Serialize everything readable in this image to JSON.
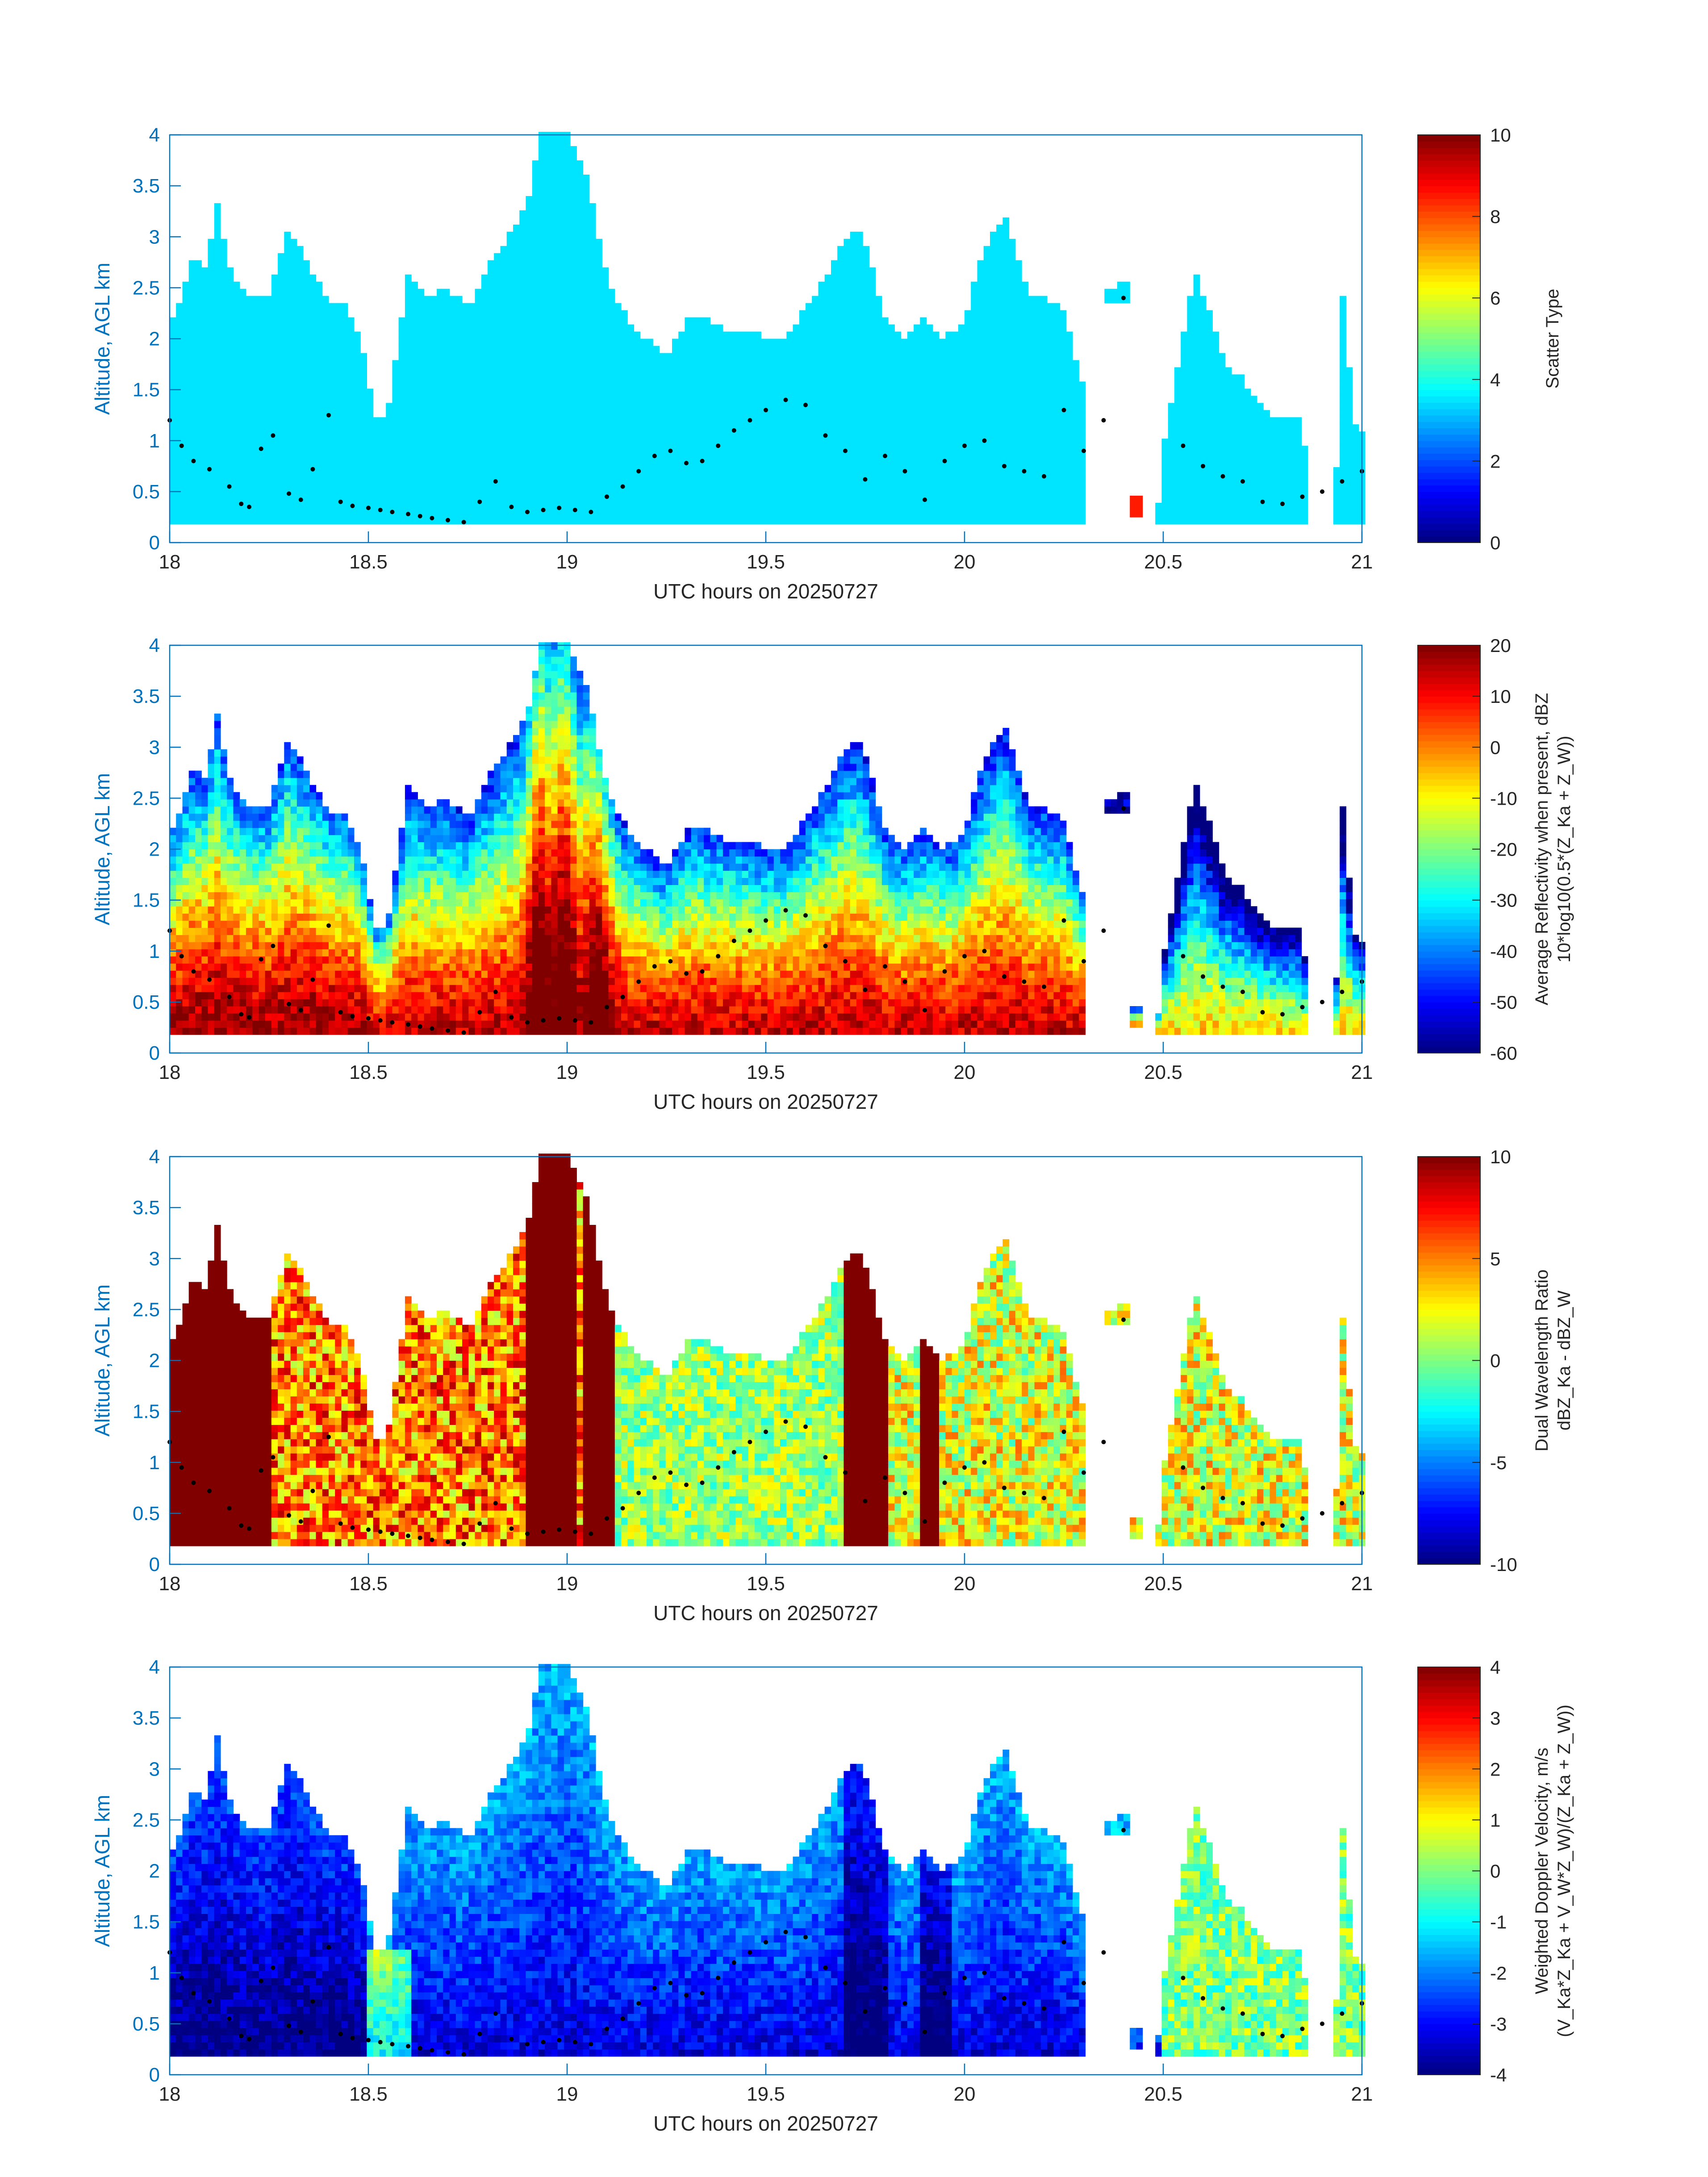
{
  "figure": {
    "xlabel": "UTC hours on 20250727",
    "ylabel": "Altitude, AGL km"
  },
  "chart_data": [
    {
      "type": "heatmap",
      "title": "",
      "xlabel": "UTC hours on 20250727",
      "ylabel": "Altitude, AGL km",
      "xlim": [
        18,
        21
      ],
      "ylim": [
        0,
        4
      ],
      "xticks": [
        "18",
        "18.5",
        "19",
        "19.5",
        "20",
        "20.5",
        "21"
      ],
      "yticks": [
        "0",
        "0.5",
        "1",
        "1.5",
        "2",
        "2.5",
        "3",
        "3.5",
        "4"
      ],
      "colorbar": {
        "label": "Scatter Type",
        "clim": [
          0,
          10
        ],
        "ticks": [
          "0",
          "2",
          "4",
          "6",
          "8",
          "10"
        ]
      },
      "field": "scatter_type",
      "dominant_value": 3.5
    },
    {
      "type": "heatmap",
      "title": "",
      "xlabel": "UTC hours on 20250727",
      "ylabel": "Altitude, AGL km",
      "xlim": [
        18,
        21
      ],
      "ylim": [
        0,
        4
      ],
      "xticks": [
        "18",
        "18.5",
        "19",
        "19.5",
        "20",
        "20.5",
        "21"
      ],
      "yticks": [
        "0",
        "0.5",
        "1",
        "1.5",
        "2",
        "2.5",
        "3",
        "3.5",
        "4"
      ],
      "colorbar": {
        "label": "Average Reflectivity when present, dBZ",
        "label2": "10*log10(0.5*(Z_Ka + Z_W))",
        "clim": [
          -60,
          20
        ],
        "ticks": [
          "-60",
          "-50",
          "-40",
          "-30",
          "-20",
          "-10",
          "0",
          "10",
          "20"
        ]
      },
      "field": "reflectivity"
    },
    {
      "type": "heatmap",
      "title": "",
      "xlabel": "UTC hours on 20250727",
      "ylabel": "Altitude, AGL km",
      "xlim": [
        18,
        21
      ],
      "ylim": [
        0,
        4
      ],
      "xticks": [
        "18",
        "18.5",
        "19",
        "19.5",
        "20",
        "20.5",
        "21"
      ],
      "yticks": [
        "0",
        "0.5",
        "1",
        "1.5",
        "2",
        "2.5",
        "3",
        "3.5",
        "4"
      ],
      "colorbar": {
        "label": "Dual Wavelength Ratio",
        "label2": "dBZ_Ka - dBZ_W",
        "clim": [
          -10,
          10
        ],
        "ticks": [
          "-10",
          "-5",
          "0",
          "5",
          "10"
        ]
      },
      "field": "dwr"
    },
    {
      "type": "heatmap",
      "title": "",
      "xlabel": "UTC hours on 20250727",
      "ylabel": "Altitude, AGL km",
      "xlim": [
        18,
        21
      ],
      "ylim": [
        0,
        4
      ],
      "xticks": [
        "18",
        "18.5",
        "19",
        "19.5",
        "20",
        "20.5",
        "21"
      ],
      "yticks": [
        "0",
        "0.5",
        "1",
        "1.5",
        "2",
        "2.5",
        "3",
        "3.5",
        "4"
      ],
      "colorbar": {
        "label": "Weighted Doppler Velocity, m/s",
        "label2": "(V_Ka*Z_Ka + V_W*Z_W)/(Z_Ka + Z_W))",
        "clim": [
          -4,
          4
        ],
        "ticks": [
          "-4",
          "-3",
          "-2",
          "-1",
          "0",
          "1",
          "2",
          "3",
          "4"
        ]
      },
      "field": "doppler_velocity"
    }
  ],
  "echo_profile": {
    "base_km": 0.18,
    "times": [
      18.0,
      18.03,
      18.06,
      18.09,
      18.12,
      18.15,
      18.2,
      18.25,
      18.3,
      18.35,
      18.4,
      18.45,
      18.48,
      18.52,
      18.55,
      18.6,
      18.65,
      18.7,
      18.75,
      18.8,
      18.85,
      18.9,
      18.93,
      18.96,
      19.0,
      19.05,
      19.1,
      19.15,
      19.2,
      19.25,
      19.3,
      19.35,
      19.4,
      19.45,
      19.5,
      19.55,
      19.6,
      19.65,
      19.7,
      19.73,
      19.76,
      19.8,
      19.85,
      19.9,
      19.95,
      20.0,
      20.05,
      20.1,
      20.13,
      20.16,
      20.2,
      20.25,
      20.3,
      20.33,
      20.35,
      20.38,
      20.4,
      20.45,
      20.48,
      20.5,
      20.55,
      20.58,
      20.62,
      20.65,
      20.7,
      20.75,
      20.8,
      20.85,
      20.88,
      20.9,
      20.93,
      20.95,
      20.98,
      21.0
    ],
    "tops_km": [
      2.1,
      2.4,
      2.8,
      2.7,
      3.35,
      2.7,
      2.4,
      2.4,
      3.1,
      2.7,
      2.4,
      2.3,
      2.0,
      1.2,
      1.3,
      2.6,
      2.4,
      2.5,
      2.3,
      2.7,
      3.0,
      3.3,
      4.0,
      4.0,
      4.0,
      3.6,
      2.6,
      2.2,
      2.0,
      1.8,
      2.2,
      2.2,
      2.1,
      2.1,
      2.0,
      2.0,
      2.3,
      2.6,
      3.0,
      3.1,
      2.8,
      2.2,
      2.0,
      2.2,
      2.0,
      2.2,
      2.9,
      3.2,
      2.9,
      2.4,
      2.4,
      2.3,
      1.5,
      1.4,
      0.0,
      0.0,
      0.0,
      0.0,
      0.0,
      0.9,
      2.0,
      2.7,
      2.2,
      1.8,
      1.6,
      1.3,
      1.2,
      1.2,
      0.0,
      0.0,
      0.0,
      2.5,
      1.2,
      1.1
    ],
    "plume_times": [
      18.93,
      18.99,
      19.08
    ],
    "isolated_points": [
      [
        20.4,
        2.45
      ],
      [
        20.37,
        2.43
      ],
      [
        20.43,
        0.35
      ]
    ]
  },
  "marker_points": {
    "times": [
      18.0,
      18.03,
      18.06,
      18.1,
      18.15,
      18.18,
      18.2,
      18.23,
      18.26,
      18.3,
      18.33,
      18.36,
      18.4,
      18.43,
      18.46,
      18.5,
      18.53,
      18.56,
      18.6,
      18.63,
      18.66,
      18.7,
      18.74,
      18.78,
      18.82,
      18.86,
      18.9,
      18.94,
      18.98,
      19.02,
      19.06,
      19.1,
      19.14,
      19.18,
      19.22,
      19.26,
      19.3,
      19.34,
      19.38,
      19.42,
      19.46,
      19.5,
      19.55,
      19.6,
      19.65,
      19.7,
      19.75,
      19.8,
      19.85,
      19.9,
      19.95,
      20.0,
      20.05,
      20.1,
      20.15,
      20.2,
      20.25,
      20.3,
      20.35,
      20.4,
      20.55,
      20.6,
      20.65,
      20.7,
      20.75,
      20.8,
      20.85,
      20.9,
      20.95,
      21.0
    ],
    "alts_km": [
      1.2,
      0.95,
      0.8,
      0.72,
      0.55,
      0.38,
      0.35,
      0.92,
      1.05,
      0.48,
      0.42,
      0.72,
      1.25,
      0.4,
      0.36,
      0.34,
      0.32,
      0.3,
      0.28,
      0.26,
      0.24,
      0.22,
      0.2,
      0.4,
      0.6,
      0.35,
      0.3,
      0.32,
      0.34,
      0.32,
      0.3,
      0.45,
      0.55,
      0.7,
      0.85,
      0.9,
      0.78,
      0.8,
      0.95,
      1.1,
      1.2,
      1.3,
      1.4,
      1.35,
      1.05,
      0.9,
      0.62,
      0.85,
      0.7,
      0.42,
      0.8,
      0.95,
      1.0,
      0.75,
      0.7,
      0.65,
      1.3,
      0.9,
      1.2,
      2.4,
      0.95,
      0.75,
      0.65,
      0.6,
      0.4,
      0.38,
      0.45,
      0.5,
      0.6,
      0.7
    ]
  }
}
